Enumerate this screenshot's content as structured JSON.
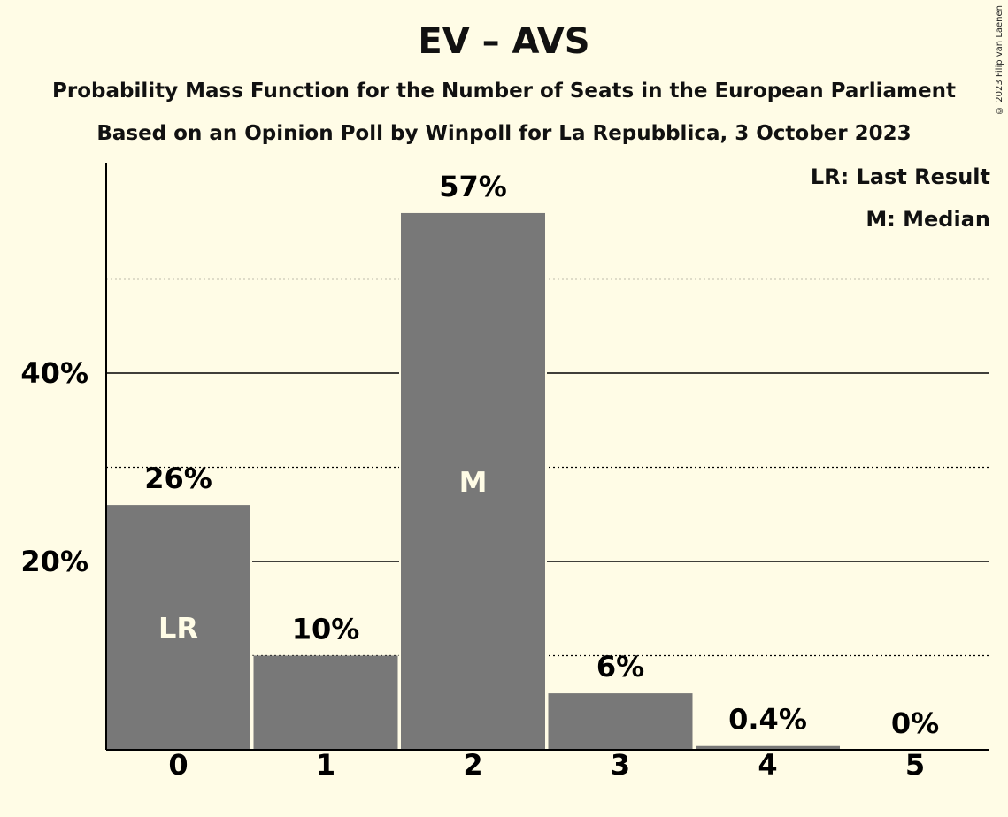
{
  "title": "EV – AVS",
  "subtitle1": "Probability Mass Function for the Number of Seats in the European Parliament",
  "subtitle2": "Based on an Opinion Poll by Winpoll for La Repubblica, 3 October 2023",
  "copyright": "© 2023 Filip van Laenen",
  "legend": {
    "last_result": "LR: Last Result",
    "median": "M: Median"
  },
  "colors": {
    "background": "#fffce6",
    "bar": "#787878"
  },
  "chart_data": {
    "type": "bar",
    "categories": [
      "0",
      "1",
      "2",
      "3",
      "4",
      "5"
    ],
    "values": [
      26,
      10,
      57,
      6,
      0.4,
      0
    ],
    "value_labels": [
      "26%",
      "10%",
      "57%",
      "6%",
      "0.4%",
      "0%"
    ],
    "bar_markers": [
      "LR",
      "",
      "M",
      "",
      "",
      ""
    ],
    "y_ticks": [
      {
        "value": 20,
        "label": "20%"
      },
      {
        "value": 40,
        "label": "40%"
      }
    ],
    "minor_gridlines": [
      10,
      30,
      50
    ],
    "ylim": [
      0,
      62
    ],
    "xlabel": "",
    "ylabel": ""
  }
}
